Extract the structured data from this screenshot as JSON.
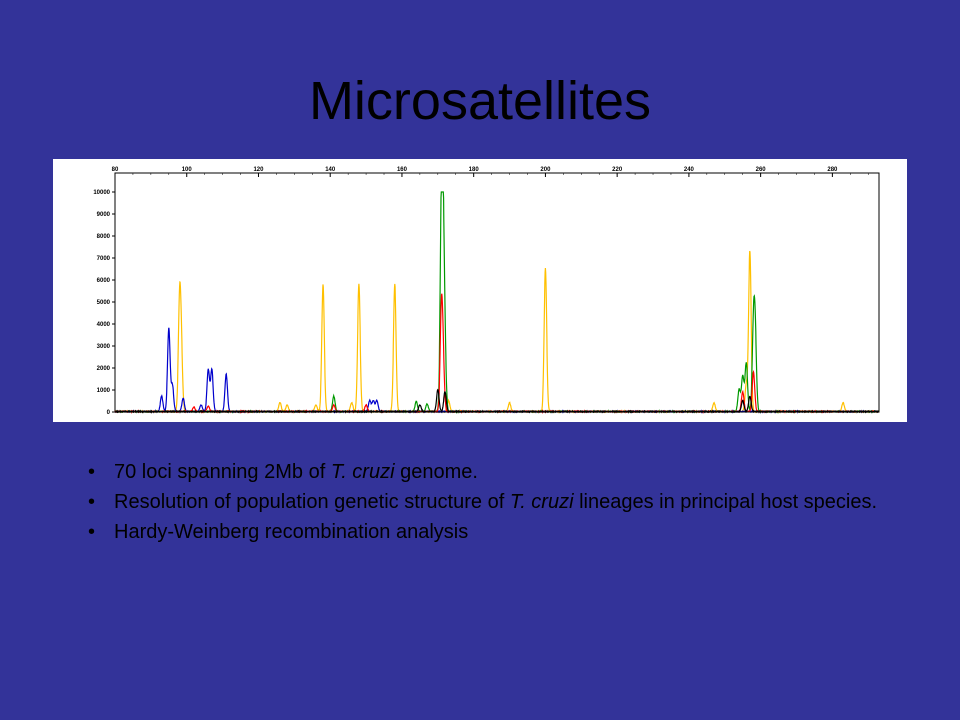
{
  "slide": {
    "title": "Microsatellites"
  },
  "bullets": [
    {
      "parts": [
        "70 loci spanning 2Mb of ",
        "T. cruzi",
        " genome."
      ]
    },
    {
      "parts": [
        "Resolution of population genetic structure of ",
        "T. cruzi",
        " lineages in principal host species."
      ]
    },
    {
      "parts": [
        "Hardy-Weinberg recombination analysis"
      ]
    }
  ],
  "colors": {
    "background": "#333399",
    "yellow": "#FFC000",
    "blue": "#0000CC",
    "green": "#009900",
    "red": "#FF0000",
    "black": "#000000"
  },
  "chart_data": {
    "type": "line",
    "x_ticks": [
      "80",
      "100",
      "120",
      "140",
      "160",
      "180",
      "200",
      "220",
      "240",
      "260",
      "280"
    ],
    "y_ticks": [
      "0",
      "1000",
      "2000",
      "3000",
      "4000",
      "5000",
      "6000",
      "7000",
      "8000",
      "9000",
      "10000"
    ],
    "xlim": [
      80,
      293
    ],
    "ylim": [
      0,
      10000
    ],
    "series": [
      {
        "color": "yellow",
        "peaks": [
          [
            98,
            4800
          ],
          [
            98.5,
            2500
          ],
          [
            126,
            400
          ],
          [
            138,
            5800
          ],
          [
            148,
            5800
          ],
          [
            158,
            5800
          ],
          [
            173,
            500
          ],
          [
            190,
            400
          ],
          [
            200,
            6500
          ],
          [
            247,
            400
          ],
          [
            257,
            7300
          ],
          [
            256,
            1200
          ],
          [
            283,
            400
          ],
          [
            136,
            300
          ],
          [
            146,
            400
          ],
          [
            128,
            300
          ]
        ]
      },
      {
        "color": "blue",
        "peaks": [
          [
            93,
            700
          ],
          [
            95,
            3800
          ],
          [
            96,
            1200
          ],
          [
            99,
            600
          ],
          [
            104,
            300
          ],
          [
            106,
            1900
          ],
          [
            107,
            1900
          ],
          [
            111,
            1700
          ],
          [
            151,
            500
          ],
          [
            152,
            500
          ],
          [
            153,
            500
          ]
        ]
      },
      {
        "color": "green",
        "peaks": [
          [
            141,
            700
          ],
          [
            164,
            450
          ],
          [
            167,
            350
          ],
          [
            171,
            8800
          ],
          [
            171.5,
            6800
          ],
          [
            172,
            2200
          ],
          [
            254,
            1000
          ],
          [
            255,
            1600
          ],
          [
            256,
            2200
          ],
          [
            258,
            3600
          ],
          [
            258.5,
            3200
          ]
        ]
      },
      {
        "color": "red",
        "peaks": [
          [
            171,
            4500
          ],
          [
            171.5,
            2000
          ],
          [
            255,
            900
          ],
          [
            258,
            1800
          ],
          [
            102,
            200
          ],
          [
            106,
            250
          ],
          [
            141,
            300
          ],
          [
            150,
            300
          ]
        ]
      },
      {
        "color": "black",
        "peaks": [
          [
            170,
            1000
          ],
          [
            172,
            900
          ],
          [
            257,
            700
          ],
          [
            255,
            500
          ],
          [
            165,
            300
          ]
        ]
      }
    ]
  }
}
